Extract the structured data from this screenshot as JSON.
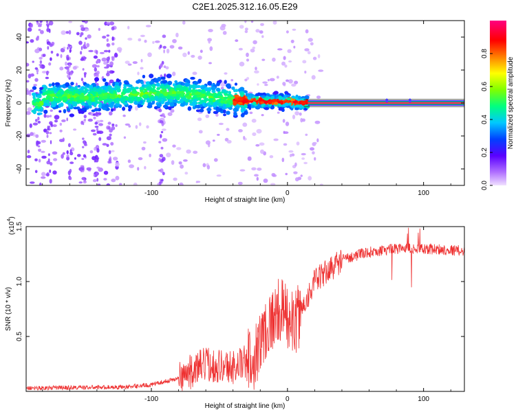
{
  "title": "C2E1.2025.312.16.05.E29",
  "chart_data": [
    {
      "type": "heatmap",
      "title": "C2E1.2025.312.16.05.E29",
      "xlabel": "Height of straight line (km)",
      "ylabel": "Frequency (Hz)",
      "xlim": [
        -192,
        130
      ],
      "ylim": [
        -50,
        50
      ],
      "x_ticks": [
        -100,
        0,
        100
      ],
      "x_tick_labels": [
        "-100",
        "0",
        "100"
      ],
      "y_ticks": [
        -40,
        -20,
        0,
        20,
        40
      ],
      "y_tick_labels": [
        "-40",
        "-20",
        "0",
        "20",
        "40"
      ],
      "colorbar": {
        "label": "Normalized spectral amplitude",
        "range": [
          0,
          1
        ],
        "ticks": [
          0.0,
          0.2,
          0.4,
          0.6,
          0.8
        ],
        "tick_labels": [
          "0.0",
          "0.2",
          "0.4",
          "0.6",
          "0.8"
        ],
        "colors": [
          "#e6d0ff",
          "#b070ff",
          "#5a00ff",
          "#0040ff",
          "#00c8ff",
          "#00ff80",
          "#80ff00",
          "#ffff00",
          "#ff8000",
          "#ff0000",
          "#ff0080"
        ]
      },
      "ridge": {
        "description_points": [
          {
            "x": -180,
            "f": 4
          },
          {
            "x": -140,
            "f": 4
          },
          {
            "x": -100,
            "f": 6
          },
          {
            "x": -80,
            "f": 6
          },
          {
            "x": -60,
            "f": 4
          },
          {
            "x": -40,
            "f": 2
          },
          {
            "x": -20,
            "f": 1
          },
          {
            "x": 0,
            "f": 1
          },
          {
            "x": 15,
            "f": 0
          },
          {
            "x": 130,
            "f": 0
          }
        ],
        "band_start_x": 15,
        "band_center_f": 0
      }
    },
    {
      "type": "line",
      "xlabel": "Height of straight line (km)",
      "ylabel": "SNR (10 * v/v)",
      "y_exponent_label": "(x10",
      "y_exponent_power": "4",
      "y_exponent_close": ")",
      "xlim": [
        -192,
        130
      ],
      "ylim": [
        0,
        1.5
      ],
      "x_ticks": [
        -100,
        0,
        100
      ],
      "x_tick_labels": [
        "-100",
        "0",
        "100"
      ],
      "y_ticks": [
        0.5,
        1.0,
        1.5
      ],
      "y_tick_labels": [
        "0.5",
        "1.0",
        "1.5"
      ],
      "series": [
        {
          "name": "SNR",
          "color": "#ee3030",
          "envelope": [
            {
              "x": -192,
              "y": 0.03
            },
            {
              "x": -120,
              "y": 0.04
            },
            {
              "x": -100,
              "y": 0.06
            },
            {
              "x": -80,
              "y": 0.12
            },
            {
              "x": -60,
              "y": 0.25
            },
            {
              "x": -40,
              "y": 0.22
            },
            {
              "x": -25,
              "y": 0.3
            },
            {
              "x": -15,
              "y": 0.6
            },
            {
              "x": -5,
              "y": 0.75
            },
            {
              "x": 5,
              "y": 0.6
            },
            {
              "x": 20,
              "y": 1.0
            },
            {
              "x": 40,
              "y": 1.2
            },
            {
              "x": 60,
              "y": 1.27
            },
            {
              "x": 80,
              "y": 1.3
            },
            {
              "x": 100,
              "y": 1.3
            },
            {
              "x": 130,
              "y": 1.28
            }
          ]
        }
      ]
    }
  ]
}
